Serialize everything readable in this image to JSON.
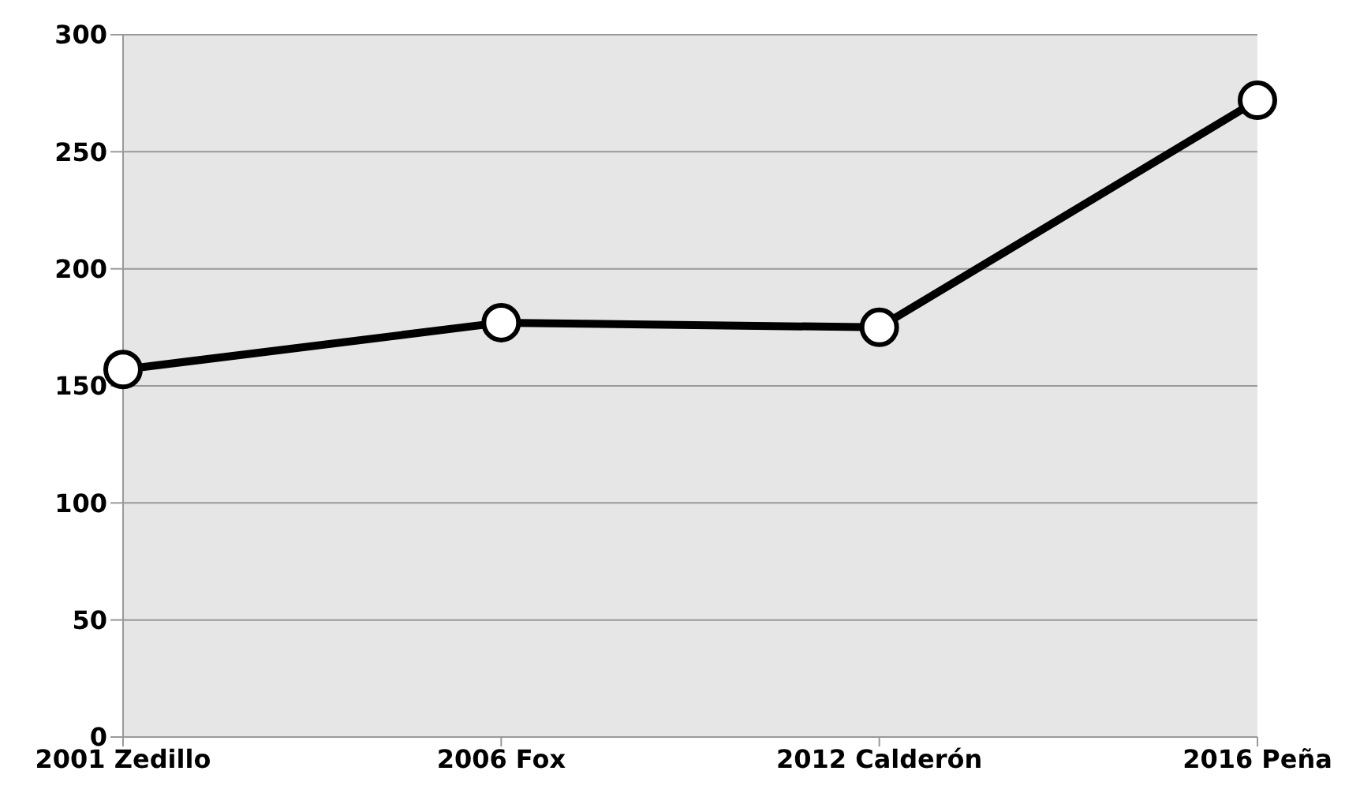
{
  "chart_data": {
    "type": "line",
    "categories": [
      "2001  Zedillo",
      "2006  Fox",
      "2012 Calderón",
      "2016  Peña"
    ],
    "series": [
      {
        "color": "#000000",
        "values": [
          157,
          177,
          175,
          272
        ]
      }
    ],
    "ylim": [
      0,
      300
    ],
    "yticks": [
      0,
      50,
      100,
      150,
      200,
      250,
      300
    ],
    "grid": "y",
    "marker": "circle",
    "line_style": "solid"
  }
}
